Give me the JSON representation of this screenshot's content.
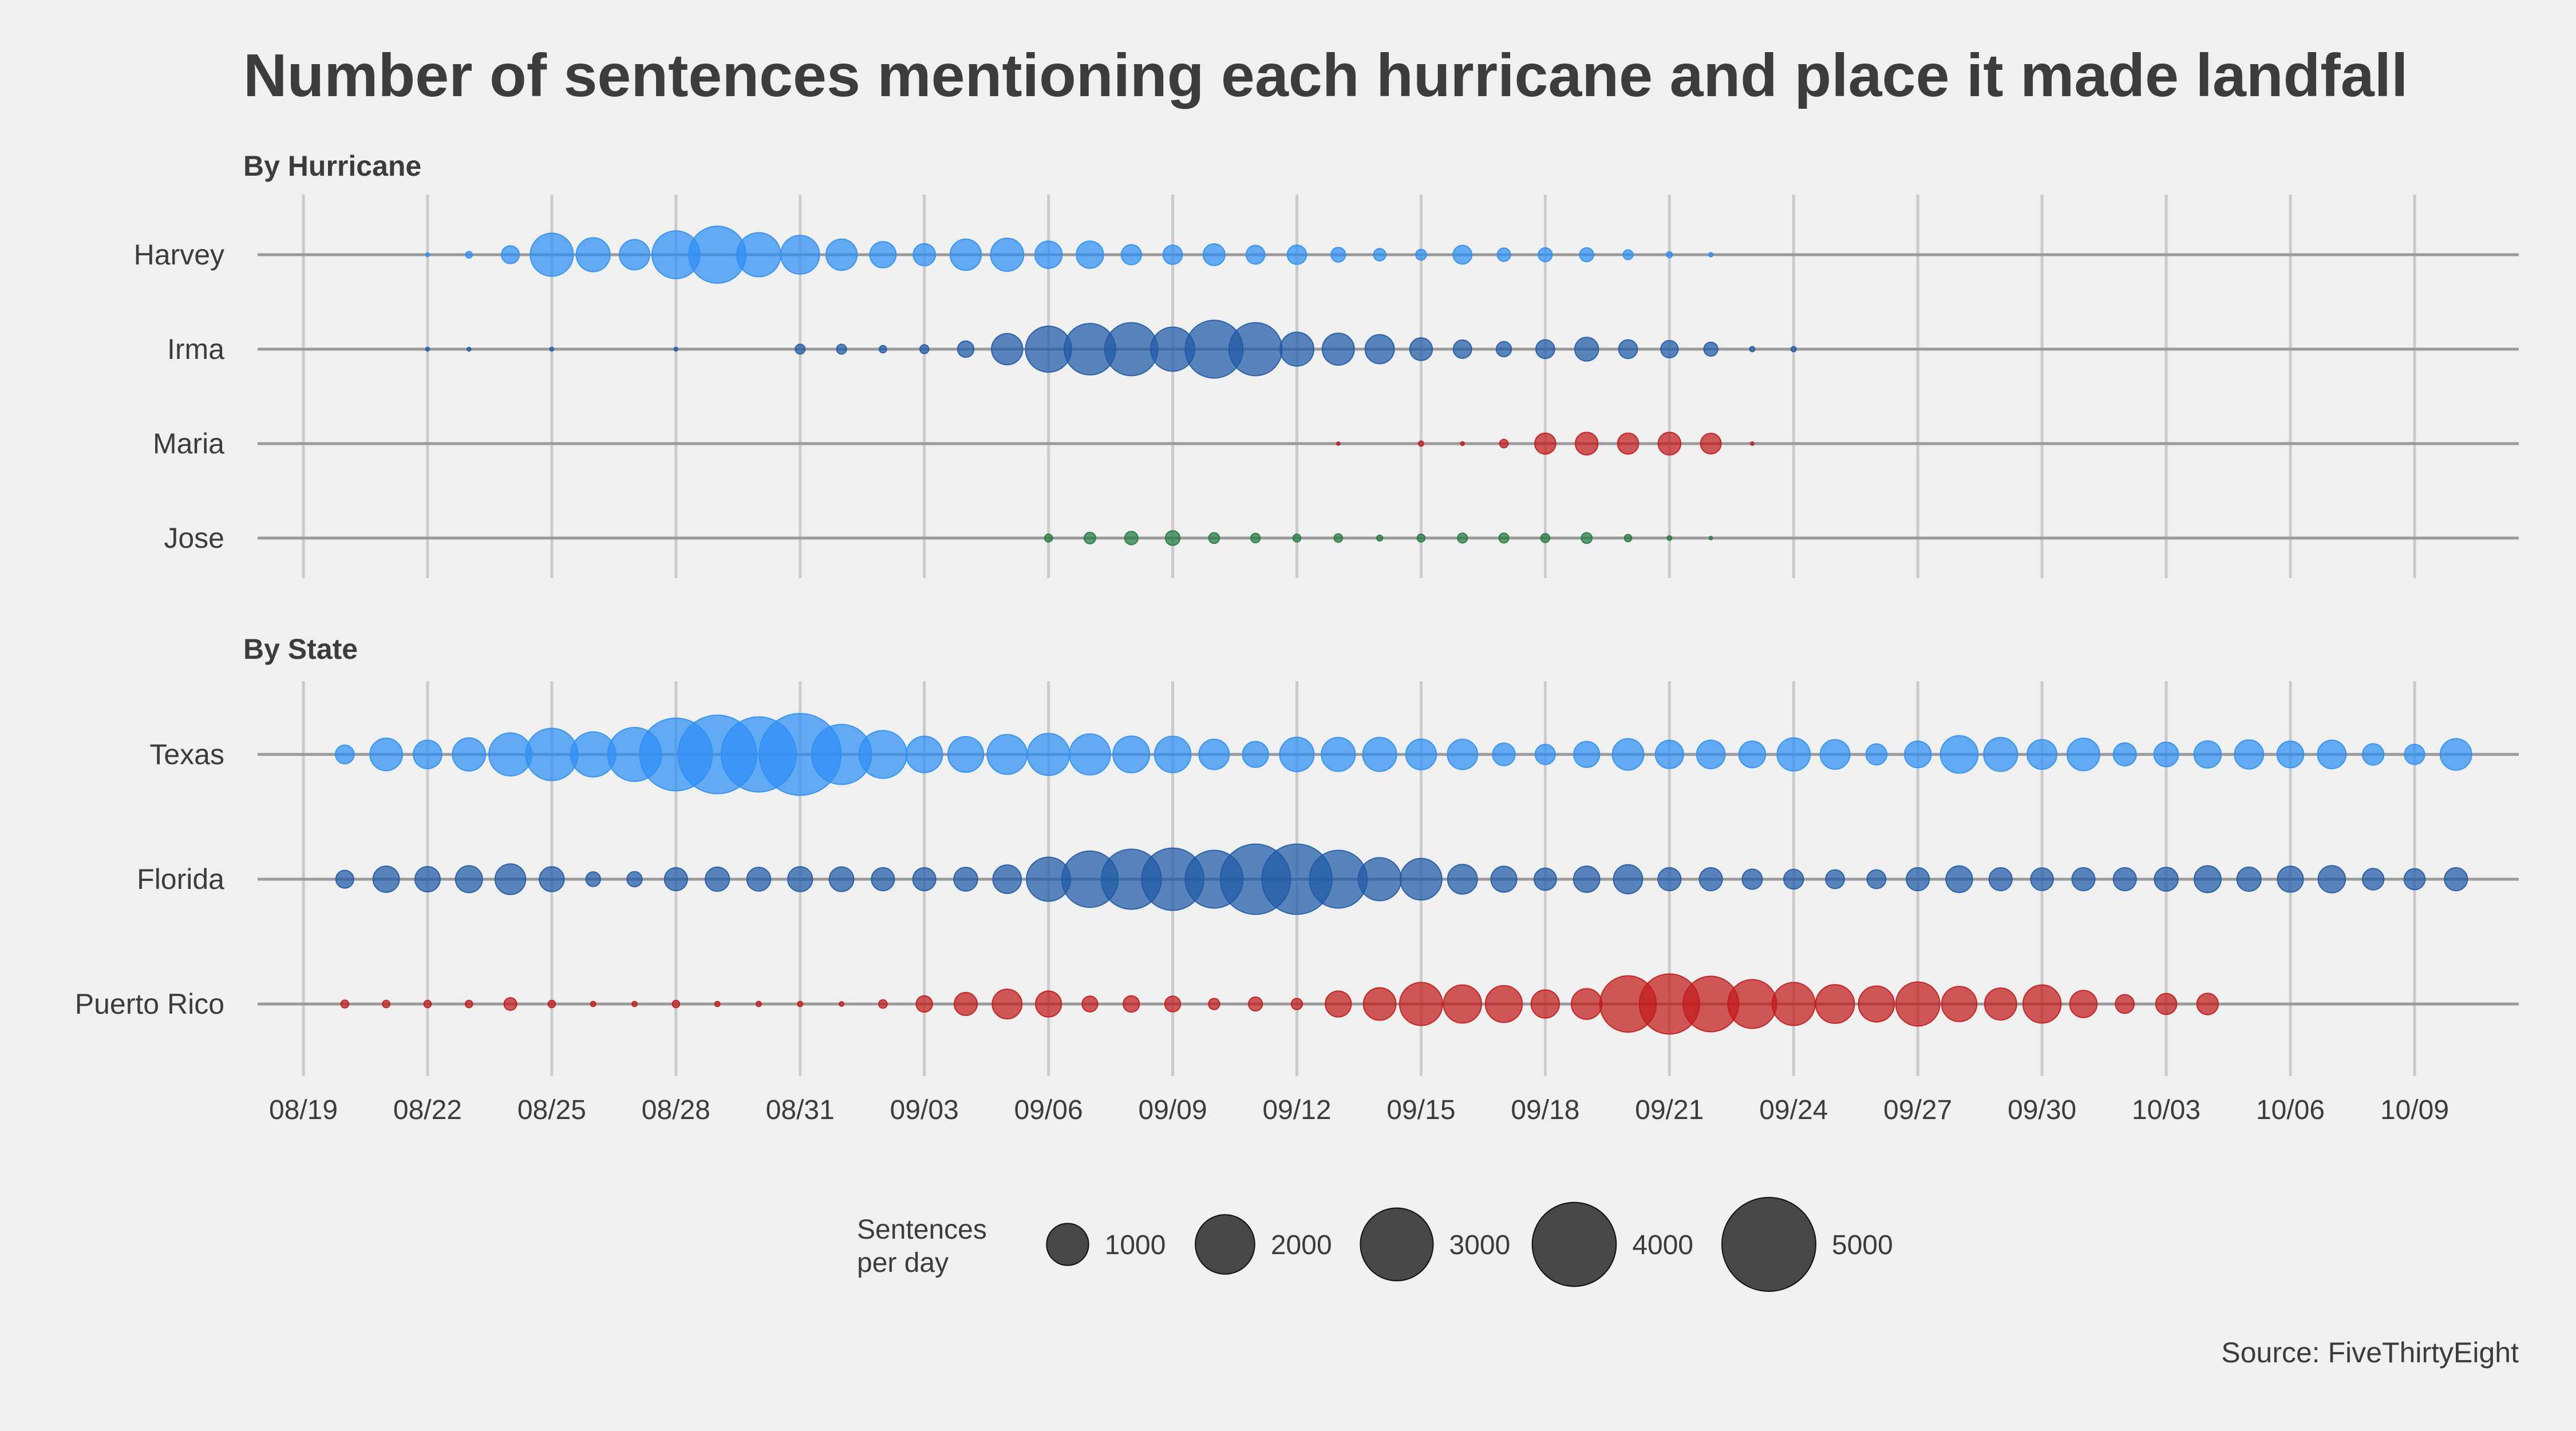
{
  "chart_data": {
    "type": "bubble-timeline",
    "title": "Number of sentences mentioning each hurricane and place it made landfall",
    "source": "Source: FiveThirtyEight",
    "x_start": "08/19",
    "x_end": "10/09",
    "x_ticks": [
      "08/19",
      "08/22",
      "08/25",
      "08/28",
      "08/31",
      "09/03",
      "09/06",
      "09/09",
      "09/12",
      "09/15",
      "09/18",
      "09/21",
      "09/24",
      "09/27",
      "09/30",
      "10/03",
      "10/06",
      "10/09"
    ],
    "legend": {
      "title_lines": [
        "Sentences",
        "per day"
      ],
      "values": [
        1000,
        2000,
        3000,
        4000,
        5000
      ],
      "labels": [
        "1000",
        "2000",
        "3000",
        "4000",
        "5000"
      ],
      "color": "#222222"
    },
    "panels": [
      {
        "title": "By Hurricane",
        "series": [
          {
            "name": "Harvey",
            "color": "#2d8ff5",
            "start": "08/22",
            "values": [
              8,
              25,
              180,
              1050,
              650,
              520,
              1300,
              1850,
              1100,
              850,
              550,
              390,
              280,
              550,
              620,
              420,
              420,
              230,
              210,
              270,
              200,
              210,
              120,
              85,
              65,
              200,
              100,
              110,
              110,
              55,
              20,
              10
            ]
          },
          {
            "name": "Irma",
            "color": "#1f5aa6",
            "start": "08/22",
            "values": [
              8,
              8,
              0,
              8,
              0,
              0,
              8,
              0,
              0,
              55,
              55,
              30,
              45,
              150,
              550,
              1200,
              1500,
              1600,
              1100,
              1900,
              1600,
              650,
              580,
              480,
              290,
              190,
              130,
              200,
              320,
              200,
              170,
              110,
              15,
              15
            ]
          },
          {
            "name": "Maria",
            "color": "#c21a1a",
            "start": "09/13",
            "values": [
              6,
              0,
              15,
              8,
              40,
              250,
              290,
              250,
              290,
              240,
              6
            ]
          },
          {
            "name": "Jose",
            "color": "#217a3e",
            "start": "09/06",
            "values": [
              35,
              75,
              100,
              120,
              65,
              50,
              35,
              40,
              20,
              35,
              55,
              55,
              45,
              65,
              30,
              12,
              6
            ]
          }
        ]
      },
      {
        "title": "By State",
        "series": [
          {
            "name": "Texas",
            "color": "#2d8ff5",
            "start": "08/20",
            "values": [
              200,
              600,
              460,
              620,
              1050,
              1550,
              1150,
              1650,
              3000,
              3500,
              3200,
              3800,
              2050,
              1300,
              750,
              720,
              900,
              1000,
              950,
              760,
              750,
              520,
              380,
              670,
              650,
              650,
              530,
              520,
              290,
              230,
              380,
              560,
              450,
              460,
              400,
              620,
              500,
              250,
              400,
              800,
              650,
              500,
              600,
              300,
              340,
              420,
              480,
              400,
              460,
              260,
              230,
              560
            ]
          },
          {
            "name": "Florida",
            "color": "#1f5aa6",
            "start": "08/20",
            "values": [
              180,
              390,
              360,
              410,
              530,
              350,
              120,
              130,
              300,
              330,
              320,
              350,
              340,
              300,
              300,
              320,
              460,
              1100,
              1800,
              2050,
              2200,
              1900,
              2800,
              2800,
              1900,
              1050,
              980,
              500,
              380,
              280,
              390,
              480,
              300,
              300,
              230,
              220,
              200,
              200,
              300,
              400,
              300,
              290,
              300,
              300,
              320,
              410,
              330,
              380,
              420,
              260,
              250,
              300
            ]
          },
          {
            "name": "Puerto Rico",
            "color": "#c21a1a",
            "start": "08/20",
            "values": [
              35,
              30,
              30,
              30,
              90,
              30,
              15,
              15,
              30,
              15,
              15,
              15,
              12,
              40,
              150,
              300,
              500,
              380,
              140,
              150,
              140,
              70,
              110,
              70,
              380,
              600,
              1050,
              820,
              770,
              450,
              530,
              1800,
              2050,
              1750,
              1350,
              1050,
              850,
              730,
              1100,
              700,
              580,
              820,
              420,
              200,
              250,
              260
            ]
          }
        ]
      }
    ]
  }
}
